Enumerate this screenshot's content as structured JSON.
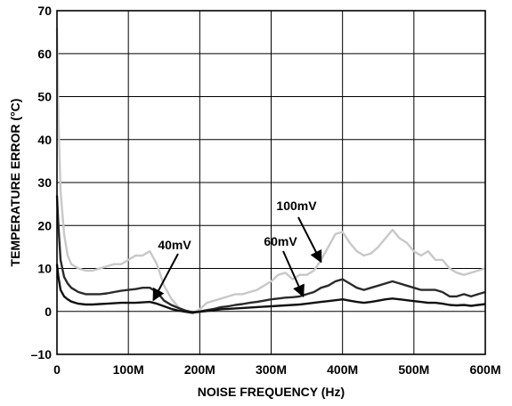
{
  "chart_data": {
    "type": "line",
    "title": "",
    "xlabel": "NOISE FREQUENCY (Hz)",
    "ylabel": "TEMPERATURE ERROR (°C)",
    "xlim": [
      0,
      600
    ],
    "ylim": [
      -10,
      70
    ],
    "x_ticks": [
      0,
      100,
      200,
      300,
      400,
      500,
      600
    ],
    "x_tick_labels": [
      "0",
      "100M",
      "200M",
      "300M",
      "400M",
      "500M",
      "600M"
    ],
    "y_ticks": [
      -10,
      0,
      10,
      20,
      30,
      40,
      50,
      60,
      70
    ],
    "y_tick_labels": [
      "–10",
      "0",
      "10",
      "20",
      "30",
      "40",
      "50",
      "60",
      "70"
    ],
    "grid": true,
    "series": [
      {
        "name": "100mV",
        "color": "#c8c8c8",
        "x": [
          0,
          2,
          5,
          10,
          15,
          20,
          30,
          40,
          50,
          60,
          70,
          80,
          90,
          100,
          110,
          120,
          130,
          140,
          150,
          160,
          170,
          180,
          190,
          200,
          210,
          220,
          230,
          240,
          250,
          260,
          270,
          280,
          290,
          300,
          310,
          320,
          330,
          340,
          350,
          360,
          370,
          380,
          390,
          400,
          410,
          420,
          430,
          440,
          450,
          460,
          470,
          480,
          490,
          500,
          510,
          520,
          530,
          540,
          550,
          560,
          570,
          580,
          590,
          600
        ],
        "y": [
          66,
          45,
          28,
          18,
          13,
          11,
          10,
          9.5,
          9.5,
          10,
          10.5,
          11,
          11,
          12,
          13,
          13,
          14,
          11,
          6,
          3,
          1,
          0,
          -0.5,
          0.5,
          2,
          2.5,
          3,
          3.5,
          4,
          4,
          4.5,
          5,
          6,
          7,
          8.5,
          9,
          7.5,
          8.5,
          8.5,
          9.5,
          12,
          15,
          18,
          18.5,
          16,
          14,
          13,
          13.5,
          15,
          17,
          19,
          17,
          16,
          14,
          13,
          14,
          12,
          12,
          10,
          9,
          8.5,
          9,
          9.5,
          10
        ]
      },
      {
        "name": "60mV",
        "color": "#2a2a2a",
        "x": [
          0,
          2,
          5,
          10,
          15,
          20,
          30,
          40,
          50,
          60,
          70,
          80,
          90,
          100,
          110,
          120,
          130,
          140,
          150,
          160,
          170,
          180,
          190,
          200,
          210,
          220,
          230,
          240,
          250,
          260,
          270,
          280,
          290,
          300,
          310,
          320,
          330,
          340,
          350,
          360,
          370,
          380,
          390,
          400,
          410,
          420,
          430,
          440,
          450,
          460,
          470,
          480,
          490,
          500,
          510,
          520,
          530,
          540,
          550,
          560,
          570,
          580,
          590,
          600
        ],
        "y": [
          27,
          20,
          12,
          8,
          6.5,
          5.5,
          4.5,
          4,
          4,
          4,
          4.2,
          4.5,
          4.8,
          5,
          5.2,
          5.5,
          5.5,
          4.5,
          2.5,
          1.5,
          0.8,
          0.2,
          -0.2,
          0,
          0.3,
          0.6,
          1,
          1.2,
          1.5,
          1.7,
          2,
          2.2,
          2.5,
          2.8,
          3,
          3.2,
          3.3,
          3.5,
          4,
          4.5,
          5.5,
          6,
          7,
          7.5,
          6.5,
          5.5,
          5,
          5.5,
          6,
          6.5,
          7,
          6.5,
          6,
          5.5,
          5,
          5,
          5,
          4.5,
          3.5,
          3.5,
          4,
          3.5,
          4,
          4.5
        ]
      },
      {
        "name": "40mV",
        "color": "#111111",
        "x": [
          0,
          2,
          5,
          10,
          15,
          20,
          30,
          40,
          50,
          60,
          70,
          80,
          90,
          100,
          110,
          120,
          130,
          140,
          150,
          160,
          170,
          180,
          190,
          200,
          210,
          220,
          230,
          240,
          250,
          260,
          270,
          280,
          290,
          300,
          310,
          320,
          330,
          340,
          350,
          360,
          370,
          380,
          390,
          400,
          410,
          420,
          430,
          440,
          450,
          460,
          470,
          480,
          490,
          500,
          510,
          520,
          530,
          540,
          550,
          560,
          570,
          580,
          590,
          600
        ],
        "y": [
          11,
          8,
          5,
          3.5,
          2.8,
          2.3,
          1.8,
          1.6,
          1.6,
          1.7,
          1.8,
          1.9,
          2,
          2,
          2,
          2.1,
          2.2,
          1.8,
          1.2,
          0.6,
          0.2,
          -0.1,
          -0.3,
          -0.1,
          0.1,
          0.3,
          0.5,
          0.6,
          0.7,
          0.8,
          0.9,
          1,
          1.1,
          1.2,
          1.3,
          1.4,
          1.5,
          1.6,
          1.8,
          2,
          2.2,
          2.4,
          2.6,
          2.8,
          2.5,
          2.2,
          2,
          2.2,
          2.5,
          2.8,
          3,
          2.8,
          2.6,
          2.4,
          2.2,
          2,
          2,
          1.8,
          1.5,
          1.4,
          1.5,
          1.3,
          1.5,
          1.7
        ]
      }
    ],
    "annotations": [
      {
        "text": "100mV",
        "series": "100mV",
        "x": 370,
        "y": 11.5
      },
      {
        "text": "60mV",
        "series": "60mV",
        "x": 345,
        "y": 3.5
      },
      {
        "text": "40mV",
        "series": "40mV",
        "x": 135,
        "y": 2.6
      }
    ]
  }
}
